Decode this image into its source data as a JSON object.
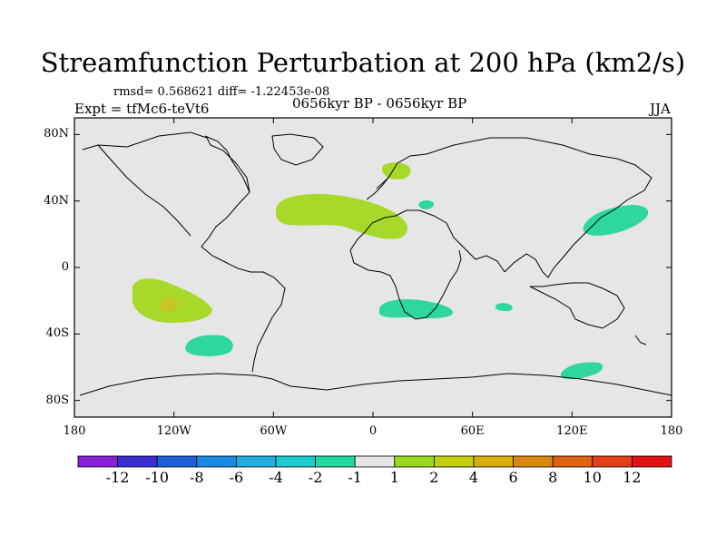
{
  "chart_data": {
    "type": "map-contour",
    "title": "Streamfunction Perturbation at 200 hPa (km2/s)",
    "rmsd_line": "rmsd= 0.568621 diff= -1.22453e-08",
    "expt_line": "Expt = tfMc6-teVt6",
    "period_line": "0656kyr BP - 0656kyr BP",
    "season": "JJA",
    "xaxis": {
      "ticks": [
        "180",
        "120W",
        "60W",
        "0",
        "60E",
        "120E",
        "180"
      ],
      "values": [
        -180,
        -120,
        -60,
        0,
        60,
        120,
        180
      ],
      "range": [
        -180,
        180
      ]
    },
    "yaxis": {
      "ticks": [
        "80N",
        "40N",
        "0",
        "40S",
        "80S"
      ],
      "values": [
        80,
        40,
        0,
        -40,
        -80
      ],
      "range": [
        -90,
        90
      ]
    },
    "colorbar": {
      "labels": [
        "-12",
        "-10",
        "-8",
        "-6",
        "-4",
        "-2",
        "-1",
        "1",
        "2",
        "4",
        "6",
        "8",
        "10",
        "12"
      ],
      "colors": [
        "#8a1fd8",
        "#3b2ed0",
        "#1f5fd6",
        "#1b8ae0",
        "#22aede",
        "#20cbd0",
        "#22d9a0",
        "#e6e6e6",
        "#9cd820",
        "#c4d010",
        "#d8ad10",
        "#d88810",
        "#e06212",
        "#e0401a",
        "#e01414"
      ]
    },
    "regions": [
      {
        "name": "north-atlantic-positive",
        "lon": -40,
        "lat": 32,
        "level": "1 to 2",
        "color": "#a6d92a"
      },
      {
        "name": "scandinavia-positive",
        "lon": 15,
        "lat": 60,
        "level": "2 to 4",
        "color": "#a6d92a"
      },
      {
        "name": "south-pacific-positive",
        "lon": -130,
        "lat": -25,
        "level": "1 to 4",
        "color": "#a6d92a"
      },
      {
        "name": "south-pacific-core",
        "lon": -125,
        "lat": -22,
        "level": "4 to 6",
        "color": "#c5c623"
      },
      {
        "name": "southeast-pacific-negative",
        "lon": -105,
        "lat": -50,
        "level": "-2 to -1",
        "color": "#2fd6a0"
      },
      {
        "name": "south-africa-negative",
        "lon": 25,
        "lat": -28,
        "level": "-2 to -1",
        "color": "#2fd6a0"
      },
      {
        "name": "indian-ocean-negative",
        "lon": 75,
        "lat": -27,
        "level": "-2 to -1",
        "color": "#2fd6a0"
      },
      {
        "name": "northwest-pacific-negative",
        "lon": 142,
        "lat": 33,
        "level": "-2 to -1",
        "color": "#2fd6a0"
      },
      {
        "name": "southern-ocean-negative",
        "lon": 118,
        "lat": -67,
        "level": "-2 to -1",
        "color": "#2fd6a0"
      },
      {
        "name": "black-sea-negative",
        "lon": 33,
        "lat": 42,
        "level": "-2 to -1",
        "color": "#2fd6a0"
      }
    ]
  }
}
